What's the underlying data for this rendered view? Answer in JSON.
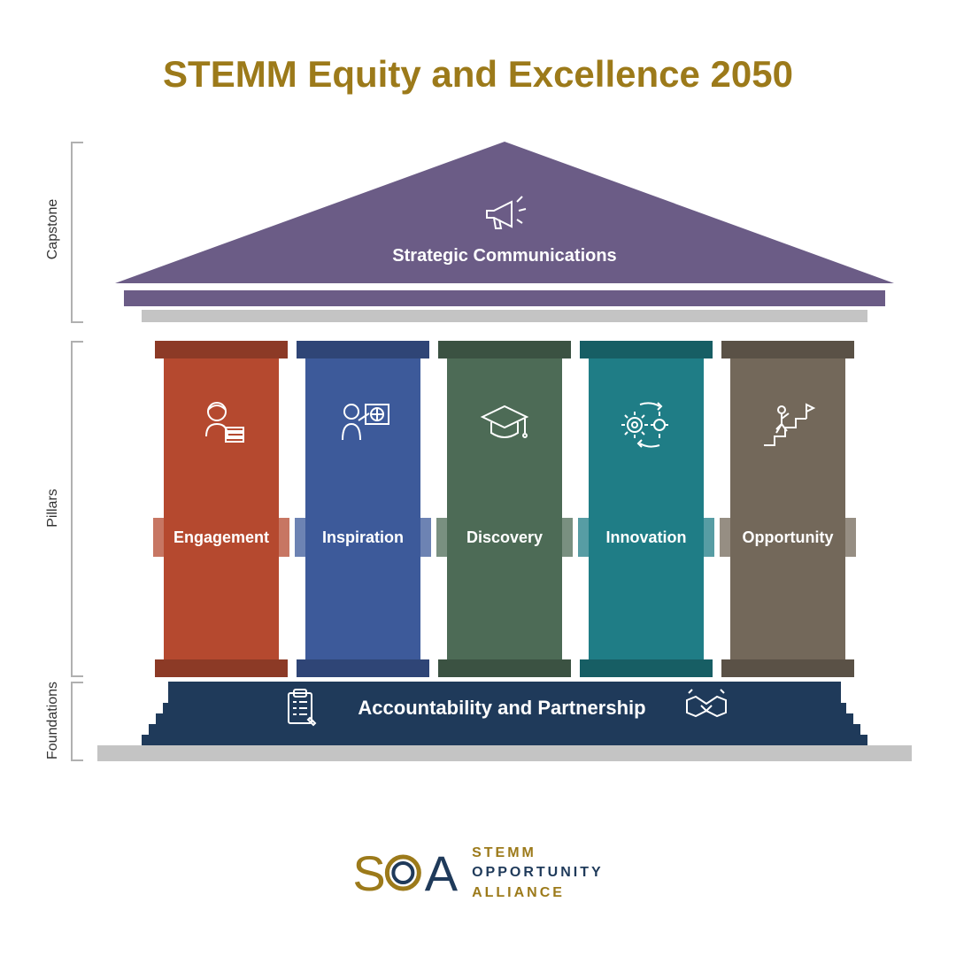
{
  "title": "STEMM Equity and Excellence 2050",
  "title_color": "#9c7a1a",
  "sections": {
    "capstone": {
      "label": "Capstone"
    },
    "pillars": {
      "label": "Pillars"
    },
    "foundations": {
      "label": "Foundations"
    }
  },
  "roof": {
    "label": "Strategic Communications",
    "color": "#6b5c86",
    "beam1_color": "#6b5c86",
    "beam2_color": "#c4c4c4",
    "icon": "megaphone"
  },
  "pillars": [
    {
      "label": "Engagement",
      "color": "#b5492f",
      "cap_color": "#8c3a26",
      "icon": "student"
    },
    {
      "label": "Inspiration",
      "color": "#3d5a9a",
      "cap_color": "#2f4576",
      "icon": "teacher"
    },
    {
      "label": "Discovery",
      "color": "#4d6b56",
      "cap_color": "#3b5242",
      "icon": "gradcap"
    },
    {
      "label": "Innovation",
      "color": "#1f7d86",
      "cap_color": "#175e64",
      "icon": "gears"
    },
    {
      "label": "Opportunity",
      "color": "#73685a",
      "cap_color": "#5a5146",
      "icon": "stairs"
    }
  ],
  "foundation": {
    "label": "Accountability and Partnership",
    "color": "#1f3a5a",
    "step_color": "#1f3a5a",
    "base_color": "#c4c4c4",
    "icon_left": "clipboard",
    "icon_right": "handshake"
  },
  "logo": {
    "mark_s_color": "#9c7a1a",
    "mark_o_color": "#1f3a5a",
    "mark_a_color": "#1f3a5a",
    "text_line1": "STEMM",
    "text_line2": "OPPORTUNITY",
    "text_line3": "ALLIANCE",
    "text_color1": "#9c7a1a",
    "text_color2": "#1f3a5a"
  },
  "bracket_color": "#b0b0b0"
}
